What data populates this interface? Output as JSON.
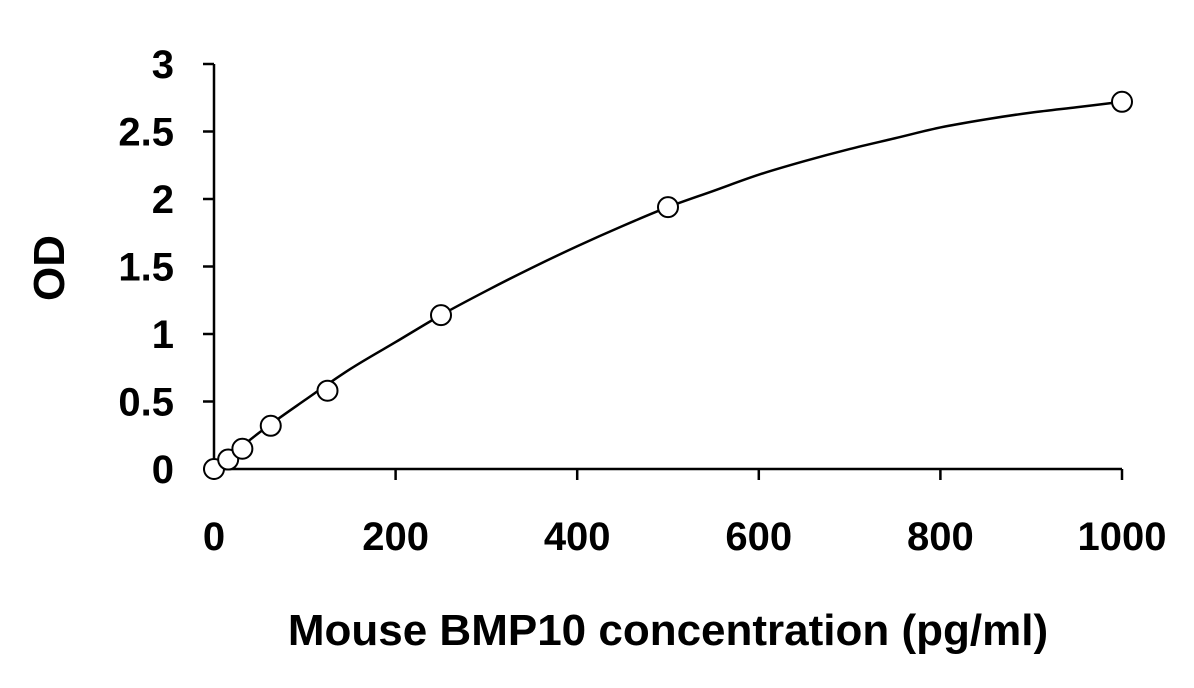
{
  "chart_data": {
    "type": "scatter",
    "xlabel": "Mouse BMP10 concentration (pg/ml)",
    "ylabel": "OD",
    "xlim": [
      0,
      1000
    ],
    "ylim": [
      0,
      3
    ],
    "xticks": [
      0,
      200,
      400,
      600,
      800,
      1000
    ],
    "yticks": [
      0,
      0.5,
      1,
      1.5,
      2,
      2.5,
      3
    ],
    "xtick_labels": [
      "0",
      "200",
      "400",
      "600",
      "800",
      "1000"
    ],
    "ytick_labels": [
      "0",
      "0.5",
      "1",
      "1.5",
      "2",
      "2.5",
      "3"
    ],
    "grid": false,
    "series": [
      {
        "marker": "open-circle",
        "points": [
          {
            "x": 0,
            "y": 0.0
          },
          {
            "x": 15.6,
            "y": 0.07
          },
          {
            "x": 31.25,
            "y": 0.15
          },
          {
            "x": 62.5,
            "y": 0.32
          },
          {
            "x": 125,
            "y": 0.58
          },
          {
            "x": 250,
            "y": 1.14
          },
          {
            "x": 500,
            "y": 1.94
          },
          {
            "x": 1000,
            "y": 2.72
          }
        ]
      }
    ],
    "fit_curve": {
      "style": "solid-black",
      "points": [
        {
          "x": 0,
          "y": 0.0
        },
        {
          "x": 50,
          "y": 0.27
        },
        {
          "x": 100,
          "y": 0.51
        },
        {
          "x": 150,
          "y": 0.74
        },
        {
          "x": 200,
          "y": 0.94
        },
        {
          "x": 250,
          "y": 1.14
        },
        {
          "x": 300,
          "y": 1.32
        },
        {
          "x": 350,
          "y": 1.49
        },
        {
          "x": 400,
          "y": 1.65
        },
        {
          "x": 450,
          "y": 1.8
        },
        {
          "x": 500,
          "y": 1.94
        },
        {
          "x": 550,
          "y": 2.06
        },
        {
          "x": 600,
          "y": 2.18
        },
        {
          "x": 650,
          "y": 2.28
        },
        {
          "x": 700,
          "y": 2.37
        },
        {
          "x": 750,
          "y": 2.45
        },
        {
          "x": 800,
          "y": 2.53
        },
        {
          "x": 850,
          "y": 2.59
        },
        {
          "x": 900,
          "y": 2.64
        },
        {
          "x": 950,
          "y": 2.68
        },
        {
          "x": 1000,
          "y": 2.72
        }
      ]
    }
  }
}
